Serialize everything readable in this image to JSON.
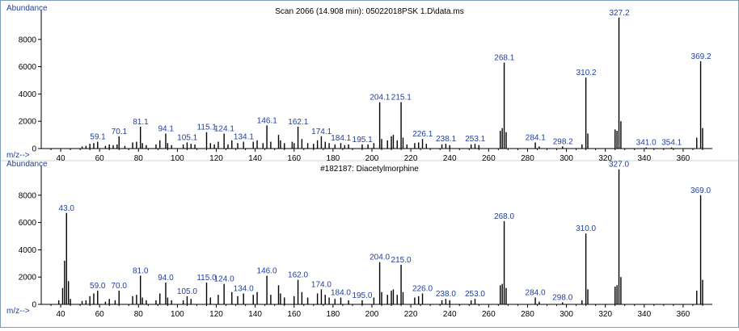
{
  "colors": {
    "label_blue": "#1f3f9f",
    "title_text": "#000000",
    "peak_line": "#000000",
    "separator": "#c8d8c8"
  },
  "chart_data": [
    {
      "type": "bar",
      "title": "Scan 2066 (14.908 min): 05022018PSK 1.D\\data.ms",
      "ylabel": "Abundance",
      "xlabel": "m/z-->",
      "xlim": [
        30,
        375
      ],
      "ylim": [
        0,
        10000
      ],
      "xticks": [
        40,
        60,
        80,
        100,
        120,
        140,
        160,
        180,
        200,
        220,
        240,
        260,
        280,
        300,
        320,
        340,
        360
      ],
      "yticks": [
        0,
        2000,
        4000,
        6000,
        8000
      ],
      "peaks": [
        {
          "x": 51,
          "y": 150
        },
        {
          "x": 53,
          "y": 200
        },
        {
          "x": 55,
          "y": 350
        },
        {
          "x": 57,
          "y": 400
        },
        {
          "x": 59,
          "y": 500
        },
        {
          "x": 63,
          "y": 200
        },
        {
          "x": 65,
          "y": 300
        },
        {
          "x": 67,
          "y": 250
        },
        {
          "x": 69,
          "y": 300
        },
        {
          "x": 70,
          "y": 900
        },
        {
          "x": 73,
          "y": 200
        },
        {
          "x": 77,
          "y": 450
        },
        {
          "x": 79,
          "y": 500
        },
        {
          "x": 81,
          "y": 1600
        },
        {
          "x": 82,
          "y": 400
        },
        {
          "x": 84,
          "y": 250
        },
        {
          "x": 89,
          "y": 300
        },
        {
          "x": 91,
          "y": 600
        },
        {
          "x": 94,
          "y": 1100
        },
        {
          "x": 95,
          "y": 400
        },
        {
          "x": 97,
          "y": 250
        },
        {
          "x": 103,
          "y": 300
        },
        {
          "x": 105,
          "y": 450
        },
        {
          "x": 107,
          "y": 350
        },
        {
          "x": 109,
          "y": 300
        },
        {
          "x": 115,
          "y": 1200
        },
        {
          "x": 117,
          "y": 400
        },
        {
          "x": 119,
          "y": 300
        },
        {
          "x": 121,
          "y": 500
        },
        {
          "x": 124,
          "y": 1100
        },
        {
          "x": 126,
          "y": 300
        },
        {
          "x": 128,
          "y": 600
        },
        {
          "x": 131,
          "y": 400
        },
        {
          "x": 134,
          "y": 500
        },
        {
          "x": 139,
          "y": 500
        },
        {
          "x": 141,
          "y": 600
        },
        {
          "x": 144,
          "y": 400
        },
        {
          "x": 146,
          "y": 1700
        },
        {
          "x": 148,
          "y": 500
        },
        {
          "x": 152,
          "y": 1000
        },
        {
          "x": 153,
          "y": 600
        },
        {
          "x": 155,
          "y": 400
        },
        {
          "x": 159,
          "y": 500
        },
        {
          "x": 160,
          "y": 400
        },
        {
          "x": 162,
          "y": 1600
        },
        {
          "x": 164,
          "y": 700
        },
        {
          "x": 167,
          "y": 400
        },
        {
          "x": 170,
          "y": 350
        },
        {
          "x": 172,
          "y": 600
        },
        {
          "x": 174,
          "y": 900
        },
        {
          "x": 176,
          "y": 500
        },
        {
          "x": 178,
          "y": 400
        },
        {
          "x": 181,
          "y": 300
        },
        {
          "x": 184,
          "y": 400
        },
        {
          "x": 186,
          "y": 250
        },
        {
          "x": 188,
          "y": 300
        },
        {
          "x": 195,
          "y": 300
        },
        {
          "x": 198,
          "y": 300
        },
        {
          "x": 201,
          "y": 400
        },
        {
          "x": 204,
          "y": 3400
        },
        {
          "x": 205,
          "y": 700
        },
        {
          "x": 208,
          "y": 600
        },
        {
          "x": 210,
          "y": 900
        },
        {
          "x": 211,
          "y": 1000
        },
        {
          "x": 213,
          "y": 600
        },
        {
          "x": 215,
          "y": 3400
        },
        {
          "x": 216,
          "y": 800
        },
        {
          "x": 218,
          "y": 300
        },
        {
          "x": 222,
          "y": 400
        },
        {
          "x": 224,
          "y": 450
        },
        {
          "x": 226,
          "y": 700
        },
        {
          "x": 228,
          "y": 350
        },
        {
          "x": 236,
          "y": 300
        },
        {
          "x": 238,
          "y": 350
        },
        {
          "x": 240,
          "y": 250
        },
        {
          "x": 251,
          "y": 300
        },
        {
          "x": 253,
          "y": 350
        },
        {
          "x": 255,
          "y": 250
        },
        {
          "x": 266,
          "y": 1300
        },
        {
          "x": 267,
          "y": 1500
        },
        {
          "x": 268,
          "y": 6300
        },
        {
          "x": 269,
          "y": 1200
        },
        {
          "x": 284,
          "y": 450
        },
        {
          "x": 286,
          "y": 150
        },
        {
          "x": 298,
          "y": 150
        },
        {
          "x": 308,
          "y": 300
        },
        {
          "x": 310,
          "y": 5200
        },
        {
          "x": 311,
          "y": 1100
        },
        {
          "x": 325,
          "y": 1400
        },
        {
          "x": 326,
          "y": 1300
        },
        {
          "x": 327,
          "y": 9600
        },
        {
          "x": 328,
          "y": 2000
        },
        {
          "x": 341,
          "y": 80
        },
        {
          "x": 354,
          "y": 80
        },
        {
          "x": 367,
          "y": 800
        },
        {
          "x": 369,
          "y": 6400
        },
        {
          "x": 370,
          "y": 1500
        }
      ],
      "annotations": [
        {
          "x": 59.1,
          "y": 500,
          "label": "59.1"
        },
        {
          "x": 70.1,
          "y": 900,
          "label": "70.1"
        },
        {
          "x": 81.1,
          "y": 1600,
          "label": "81.1"
        },
        {
          "x": 94.1,
          "y": 1100,
          "label": "94.1"
        },
        {
          "x": 105.1,
          "y": 450,
          "label": "105.1"
        },
        {
          "x": 115.1,
          "y": 1200,
          "label": "115.1"
        },
        {
          "x": 124.1,
          "y": 1100,
          "label": "124.1"
        },
        {
          "x": 134.1,
          "y": 500,
          "label": "134.1"
        },
        {
          "x": 146.1,
          "y": 1700,
          "label": "146.1"
        },
        {
          "x": 162.1,
          "y": 1600,
          "label": "162.1"
        },
        {
          "x": 174.1,
          "y": 900,
          "label": "174.1"
        },
        {
          "x": 184.1,
          "y": 400,
          "label": "184.1"
        },
        {
          "x": 195.1,
          "y": 300,
          "label": "195.1"
        },
        {
          "x": 204.1,
          "y": 3400,
          "label": "204.1"
        },
        {
          "x": 215.1,
          "y": 3400,
          "label": "215.1"
        },
        {
          "x": 226.1,
          "y": 700,
          "label": "226.1"
        },
        {
          "x": 238.1,
          "y": 350,
          "label": "238.1"
        },
        {
          "x": 253.1,
          "y": 350,
          "label": "253.1"
        },
        {
          "x": 268.1,
          "y": 6300,
          "label": "268.1"
        },
        {
          "x": 284.1,
          "y": 450,
          "label": "284.1"
        },
        {
          "x": 298.2,
          "y": 150,
          "label": "298.2"
        },
        {
          "x": 310.2,
          "y": 5200,
          "label": "310.2"
        },
        {
          "x": 327.2,
          "y": 9600,
          "label": "327.2"
        },
        {
          "x": 341.0,
          "y": 80,
          "label": "341.0"
        },
        {
          "x": 354.1,
          "y": 80,
          "label": "354.1"
        },
        {
          "x": 369.2,
          "y": 6400,
          "label": "369.2"
        }
      ]
    },
    {
      "type": "bar",
      "title": "#182187: Diacetylmorphine",
      "ylabel": "Abundance",
      "xlabel": "m/z-->",
      "xlim": [
        30,
        375
      ],
      "ylim": [
        0,
        10000
      ],
      "xticks": [
        40,
        60,
        80,
        100,
        120,
        140,
        160,
        180,
        200,
        220,
        240,
        260,
        280,
        300,
        320,
        340,
        360
      ],
      "yticks": [
        0,
        2000,
        4000,
        6000,
        8000
      ],
      "peaks": [
        {
          "x": 39,
          "y": 300
        },
        {
          "x": 41,
          "y": 1200
        },
        {
          "x": 42,
          "y": 3200
        },
        {
          "x": 43,
          "y": 6700
        },
        {
          "x": 44,
          "y": 1700
        },
        {
          "x": 45,
          "y": 400
        },
        {
          "x": 51,
          "y": 250
        },
        {
          "x": 53,
          "y": 300
        },
        {
          "x": 55,
          "y": 600
        },
        {
          "x": 57,
          "y": 800
        },
        {
          "x": 59,
          "y": 1000
        },
        {
          "x": 63,
          "y": 200
        },
        {
          "x": 65,
          "y": 400
        },
        {
          "x": 68,
          "y": 300
        },
        {
          "x": 70,
          "y": 1000
        },
        {
          "x": 77,
          "y": 600
        },
        {
          "x": 79,
          "y": 700
        },
        {
          "x": 81,
          "y": 2100
        },
        {
          "x": 82,
          "y": 500
        },
        {
          "x": 84,
          "y": 300
        },
        {
          "x": 89,
          "y": 300
        },
        {
          "x": 91,
          "y": 800
        },
        {
          "x": 94,
          "y": 1600
        },
        {
          "x": 95,
          "y": 500
        },
        {
          "x": 97,
          "y": 300
        },
        {
          "x": 103,
          "y": 300
        },
        {
          "x": 105,
          "y": 600
        },
        {
          "x": 107,
          "y": 400
        },
        {
          "x": 115,
          "y": 1600
        },
        {
          "x": 117,
          "y": 500
        },
        {
          "x": 121,
          "y": 700
        },
        {
          "x": 124,
          "y": 1500
        },
        {
          "x": 128,
          "y": 900
        },
        {
          "x": 131,
          "y": 600
        },
        {
          "x": 134,
          "y": 800
        },
        {
          "x": 139,
          "y": 700
        },
        {
          "x": 141,
          "y": 900
        },
        {
          "x": 146,
          "y": 2100
        },
        {
          "x": 148,
          "y": 700
        },
        {
          "x": 152,
          "y": 1400
        },
        {
          "x": 153,
          "y": 800
        },
        {
          "x": 155,
          "y": 500
        },
        {
          "x": 160,
          "y": 600
        },
        {
          "x": 162,
          "y": 1800
        },
        {
          "x": 164,
          "y": 900
        },
        {
          "x": 167,
          "y": 500
        },
        {
          "x": 172,
          "y": 800
        },
        {
          "x": 174,
          "y": 1100
        },
        {
          "x": 176,
          "y": 700
        },
        {
          "x": 178,
          "y": 500
        },
        {
          "x": 181,
          "y": 400
        },
        {
          "x": 184,
          "y": 500
        },
        {
          "x": 188,
          "y": 300
        },
        {
          "x": 195,
          "y": 300
        },
        {
          "x": 201,
          "y": 500
        },
        {
          "x": 204,
          "y": 3100
        },
        {
          "x": 205,
          "y": 900
        },
        {
          "x": 208,
          "y": 700
        },
        {
          "x": 210,
          "y": 1000
        },
        {
          "x": 211,
          "y": 1100
        },
        {
          "x": 213,
          "y": 700
        },
        {
          "x": 215,
          "y": 2900
        },
        {
          "x": 216,
          "y": 900
        },
        {
          "x": 222,
          "y": 500
        },
        {
          "x": 224,
          "y": 600
        },
        {
          "x": 226,
          "y": 800
        },
        {
          "x": 236,
          "y": 300
        },
        {
          "x": 238,
          "y": 400
        },
        {
          "x": 240,
          "y": 300
        },
        {
          "x": 251,
          "y": 300
        },
        {
          "x": 253,
          "y": 400
        },
        {
          "x": 266,
          "y": 1400
        },
        {
          "x": 267,
          "y": 1500
        },
        {
          "x": 268,
          "y": 6100
        },
        {
          "x": 269,
          "y": 1200
        },
        {
          "x": 284,
          "y": 500
        },
        {
          "x": 286,
          "y": 200
        },
        {
          "x": 298,
          "y": 150
        },
        {
          "x": 308,
          "y": 300
        },
        {
          "x": 310,
          "y": 5200
        },
        {
          "x": 311,
          "y": 1100
        },
        {
          "x": 325,
          "y": 1300
        },
        {
          "x": 326,
          "y": 1400
        },
        {
          "x": 327,
          "y": 9900
        },
        {
          "x": 328,
          "y": 2000
        },
        {
          "x": 367,
          "y": 1000
        },
        {
          "x": 369,
          "y": 8000
        },
        {
          "x": 370,
          "y": 1800
        }
      ],
      "annotations": [
        {
          "x": 43.0,
          "y": 6700,
          "label": "43.0"
        },
        {
          "x": 59.0,
          "y": 1000,
          "label": "59.0"
        },
        {
          "x": 70.0,
          "y": 1000,
          "label": "70.0"
        },
        {
          "x": 81.0,
          "y": 2100,
          "label": "81.0"
        },
        {
          "x": 94.0,
          "y": 1600,
          "label": "94.0"
        },
        {
          "x": 105.0,
          "y": 600,
          "label": "105.0"
        },
        {
          "x": 115.0,
          "y": 1600,
          "label": "115.0"
        },
        {
          "x": 124.0,
          "y": 1500,
          "label": "124.0"
        },
        {
          "x": 134.0,
          "y": 800,
          "label": "134.0"
        },
        {
          "x": 146.0,
          "y": 2100,
          "label": "146.0"
        },
        {
          "x": 162.0,
          "y": 1800,
          "label": "162.0"
        },
        {
          "x": 174.0,
          "y": 1100,
          "label": "174.0"
        },
        {
          "x": 184.0,
          "y": 500,
          "label": "184.0"
        },
        {
          "x": 195.0,
          "y": 300,
          "label": "195.0"
        },
        {
          "x": 204.0,
          "y": 3100,
          "label": "204.0"
        },
        {
          "x": 215.0,
          "y": 2900,
          "label": "215.0"
        },
        {
          "x": 226.0,
          "y": 800,
          "label": "226.0"
        },
        {
          "x": 238.0,
          "y": 400,
          "label": "238.0"
        },
        {
          "x": 253.0,
          "y": 400,
          "label": "253.0"
        },
        {
          "x": 268.0,
          "y": 6100,
          "label": "268.0"
        },
        {
          "x": 284.0,
          "y": 500,
          "label": "284.0"
        },
        {
          "x": 298.0,
          "y": 150,
          "label": "298.0"
        },
        {
          "x": 310.0,
          "y": 5200,
          "label": "310.0"
        },
        {
          "x": 327.0,
          "y": 9900,
          "label": "327.0"
        },
        {
          "x": 369.0,
          "y": 8000,
          "label": "369.0"
        }
      ]
    }
  ]
}
